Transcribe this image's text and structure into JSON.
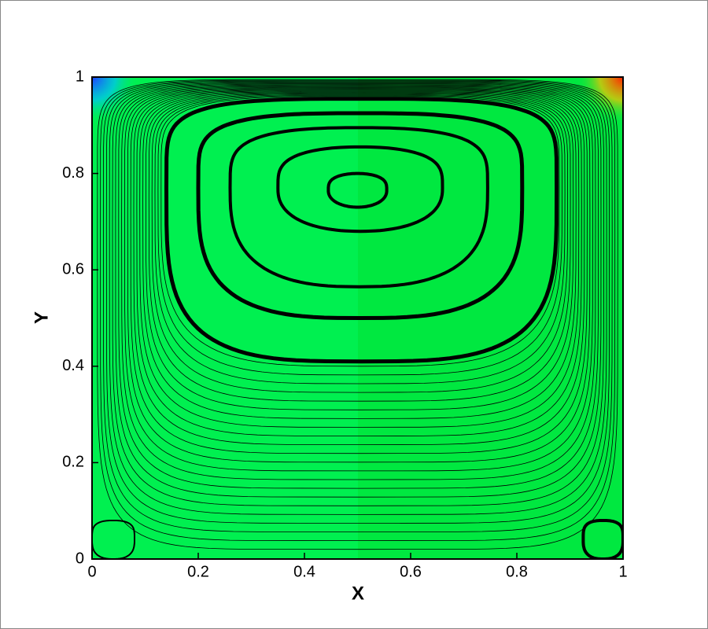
{
  "chart_data": {
    "type": "streamline",
    "xlabel": "X",
    "ylabel": "Y",
    "xlim": [
      0,
      1
    ],
    "ylim": [
      0,
      1
    ],
    "xticks": [
      0,
      0.2,
      0.4,
      0.6,
      0.8,
      1
    ],
    "yticks": [
      0,
      0.2,
      0.4,
      0.6,
      0.8,
      1
    ]
  }
}
